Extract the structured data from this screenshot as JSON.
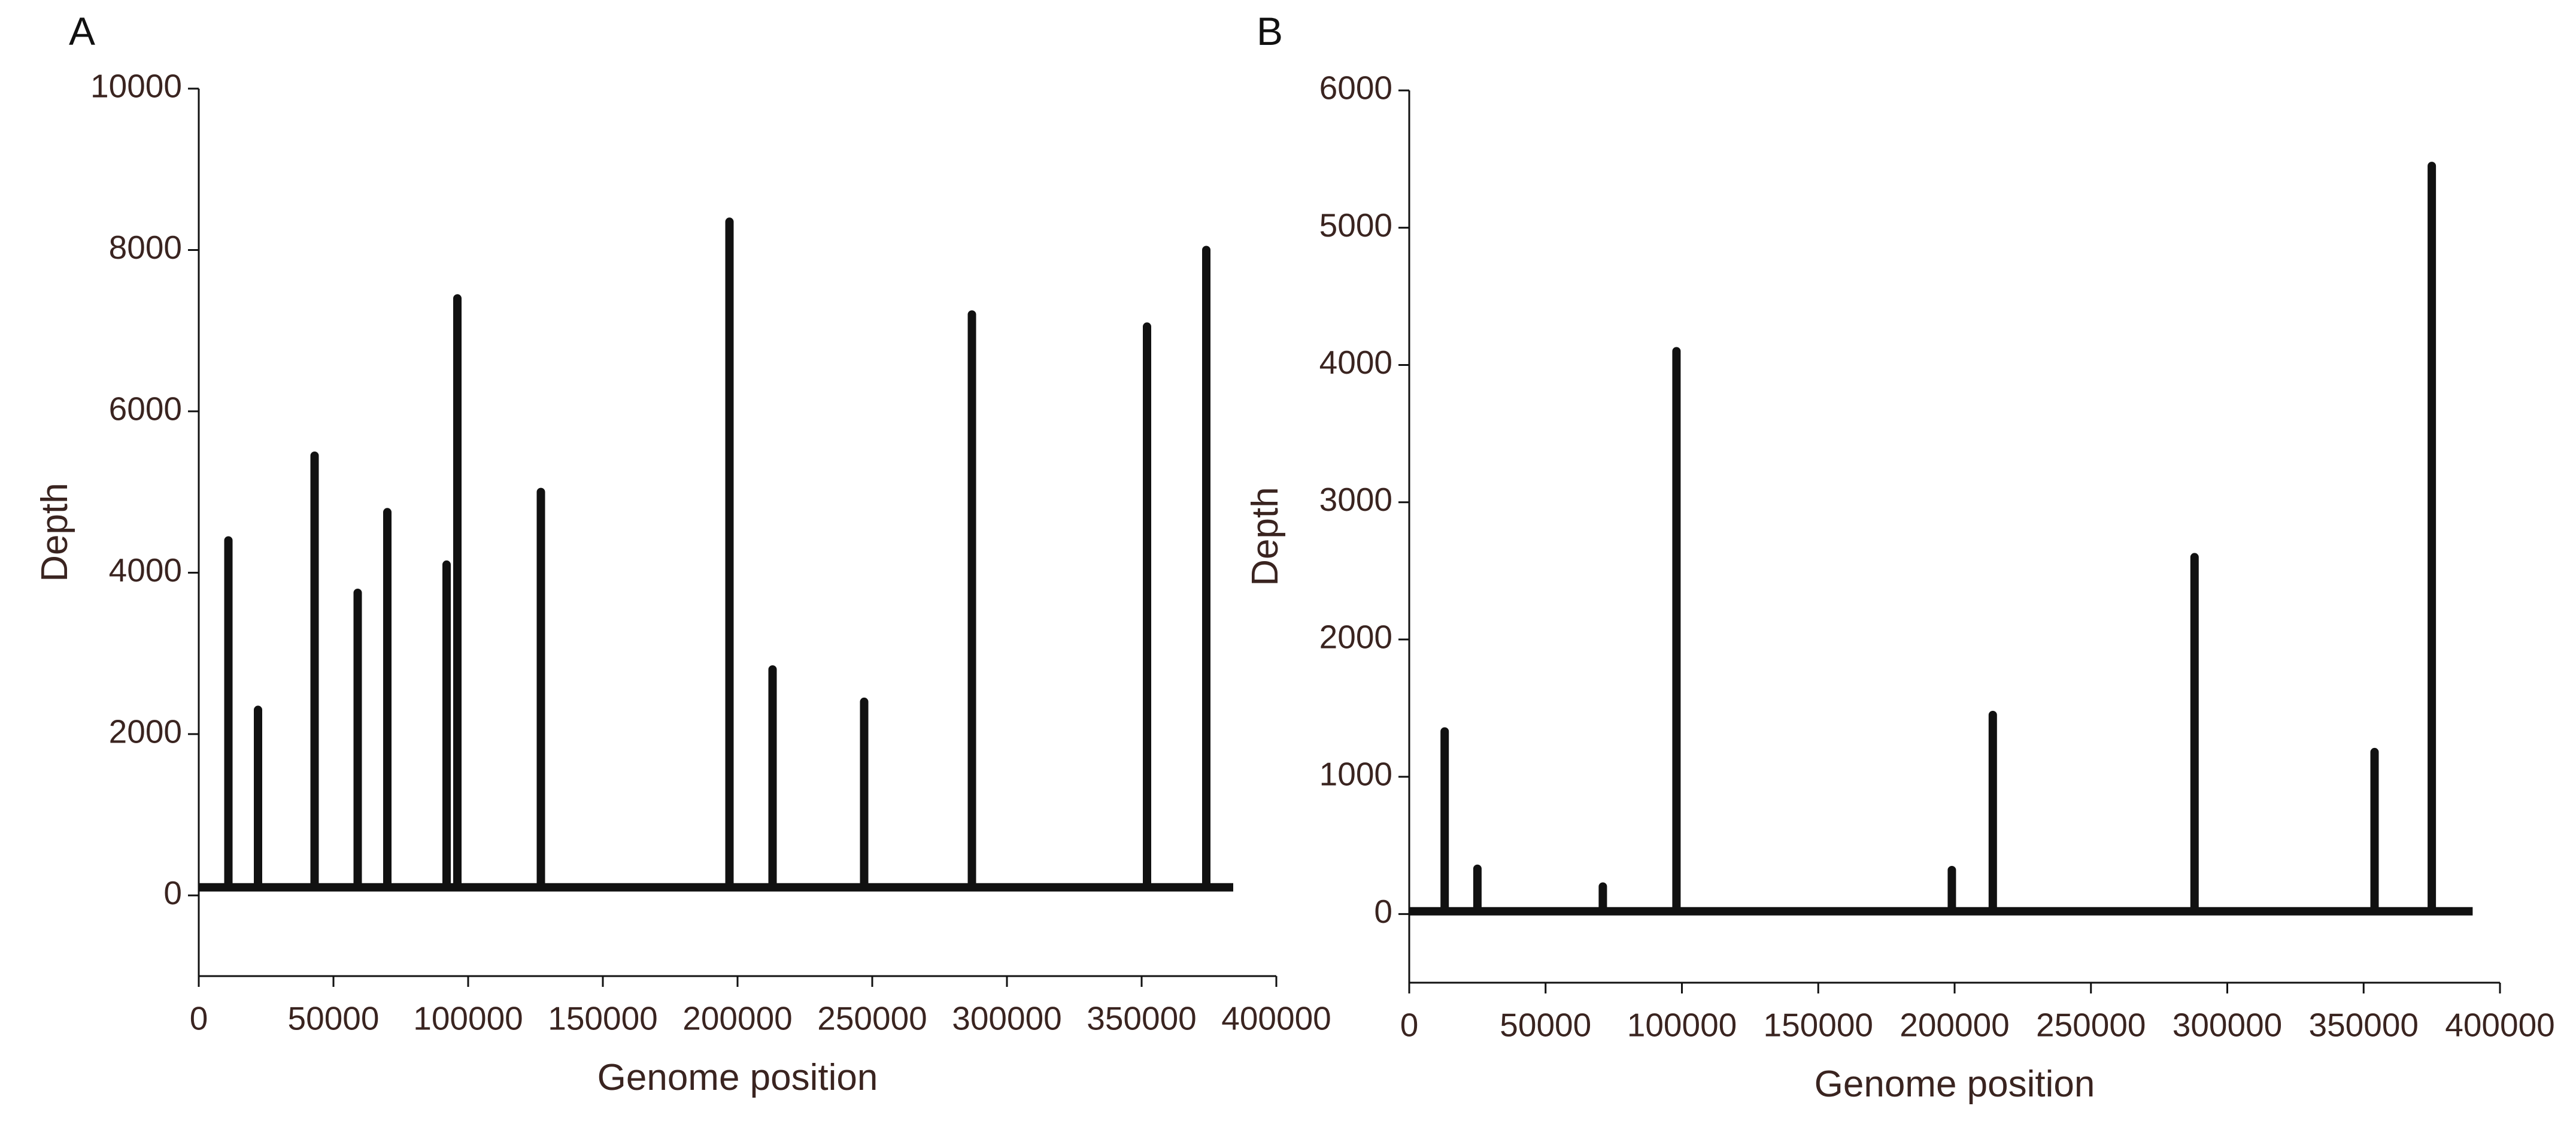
{
  "chart_data": [
    {
      "type": "line",
      "title": "A",
      "x_label": "Genome position",
      "y_label": "Depth",
      "xlim": [
        0,
        400000
      ],
      "ylim": [
        -1000,
        10000
      ],
      "xticks": [
        0,
        50000,
        100000,
        150000,
        200000,
        250000,
        300000,
        350000,
        400000
      ],
      "yticks": [
        0,
        2000,
        4000,
        6000,
        8000,
        10000
      ],
      "color": "#111111",
      "x": [
        0,
        11000,
        11000,
        11000,
        22000,
        22000,
        22000,
        43000,
        43000,
        43000,
        59000,
        59000,
        59000,
        70000,
        70000,
        70000,
        92000,
        92000,
        92000,
        96000,
        96000,
        96000,
        127000,
        127000,
        127000,
        197000,
        197000,
        197000,
        213000,
        213000,
        213000,
        247000,
        247000,
        247000,
        287000,
        287000,
        287000,
        352000,
        352000,
        352000,
        374000,
        374000,
        374000,
        384000
      ],
      "values": [
        100,
        100,
        4400,
        100,
        100,
        2300,
        100,
        100,
        5450,
        100,
        100,
        3750,
        100,
        100,
        4750,
        100,
        100,
        4100,
        100,
        100,
        7400,
        100,
        100,
        5000,
        100,
        100,
        8350,
        100,
        100,
        2800,
        100,
        100,
        2400,
        100,
        100,
        7200,
        100,
        100,
        7050,
        100,
        100,
        8000,
        100,
        100
      ]
    },
    {
      "type": "line",
      "title": "B",
      "x_label": "Genome position",
      "y_label": "Depth",
      "xlim": [
        0,
        400000
      ],
      "ylim": [
        -500,
        6000
      ],
      "xticks": [
        0,
        50000,
        100000,
        150000,
        200000,
        250000,
        300000,
        350000,
        400000
      ],
      "yticks": [
        0,
        1000,
        2000,
        3000,
        4000,
        5000,
        6000
      ],
      "color": "#111111",
      "x": [
        0,
        13000,
        13000,
        13000,
        25000,
        25000,
        25000,
        71000,
        71000,
        71000,
        98000,
        98000,
        98000,
        199000,
        199000,
        199000,
        214000,
        214000,
        214000,
        288000,
        288000,
        288000,
        354000,
        354000,
        354000,
        375000,
        375000,
        375000,
        390000
      ],
      "values": [
        20,
        20,
        1330,
        20,
        20,
        330,
        20,
        20,
        200,
        20,
        20,
        4100,
        20,
        20,
        320,
        20,
        20,
        1450,
        20,
        20,
        2600,
        20,
        20,
        1180,
        20,
        20,
        5450,
        20,
        20
      ]
    }
  ]
}
